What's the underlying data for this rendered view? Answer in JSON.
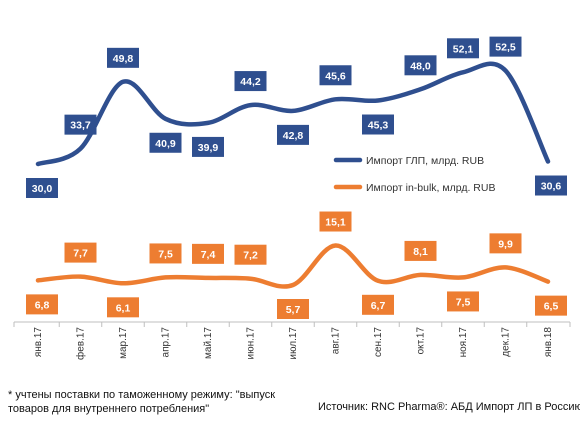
{
  "chart_data": {
    "type": "line",
    "categories": [
      "янв.17",
      "фев.17",
      "мар.17",
      "апр.17",
      "май.17",
      "июн.17",
      "июл.17",
      "авг.17",
      "сен.17",
      "окт.17",
      "ноя.17",
      "дек.17",
      "янв.18"
    ],
    "series": [
      {
        "name": "Импорт ГЛП, млрд. RUB",
        "color": "#2f4f8f",
        "values": [
          30.0,
          33.7,
          49.8,
          40.9,
          39.9,
          44.2,
          42.8,
          45.6,
          45.3,
          48.0,
          52.1,
          52.5,
          30.6
        ],
        "labels": [
          "30,0",
          "33,7",
          "49,8",
          "40,9",
          "39,9",
          "44,2",
          "42,8",
          "45,6",
          "45,3",
          "48,0",
          "52,1",
          "52,5",
          "30,6"
        ]
      },
      {
        "name": "Импорт in-bulk, млрд. RUB",
        "color": "#ed7d31",
        "values": [
          6.8,
          7.7,
          6.1,
          7.5,
          7.4,
          7.2,
          5.7,
          15.1,
          6.7,
          8.1,
          7.5,
          9.9,
          6.5
        ],
        "labels": [
          "6,8",
          "7,7",
          "6,1",
          "7,5",
          "7,4",
          "7,2",
          "5,7",
          "15,1",
          "6,7",
          "8,1",
          "7,5",
          "9,9",
          "6,5"
        ]
      }
    ],
    "legend_position": "right"
  },
  "footnote": "* учтены поставки по таможенному режиму: \"выпуск товаров для внутреннего потребления\"",
  "source": "Источник: RNC Pharma®: АБД Импорт ЛП в Россию"
}
